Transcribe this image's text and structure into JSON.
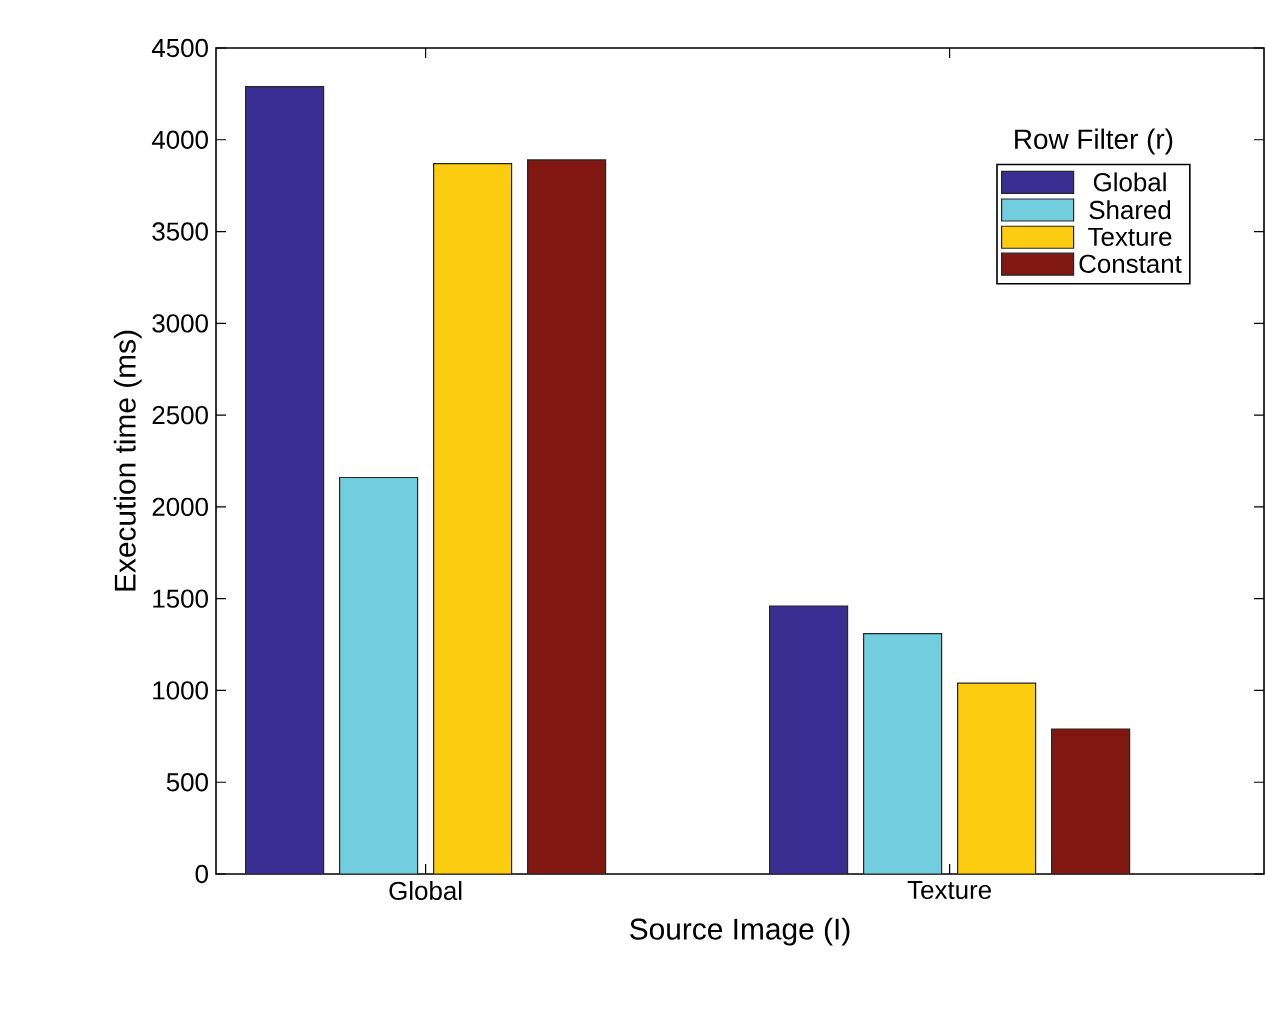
{
  "chart_data": {
    "type": "bar",
    "xlabel": "Source Image (I)",
    "ylabel": "Execution time (ms)",
    "legend_title": "Row Filter (r)",
    "categories": [
      "Global",
      "Texture"
    ],
    "series": [
      {
        "name": "Global",
        "color": "#3a2e92",
        "values": [
          4290,
          1460
        ]
      },
      {
        "name": "Shared",
        "color": "#72cddf",
        "values": [
          2160,
          1310
        ]
      },
      {
        "name": "Texture",
        "color": "#fbcc10",
        "values": [
          3870,
          1040
        ]
      },
      {
        "name": "Constant",
        "color": "#801811",
        "values": [
          3890,
          790
        ]
      }
    ],
    "ylim": [
      0,
      4500
    ],
    "yticks": [
      0,
      500,
      1000,
      1500,
      2000,
      2500,
      3000,
      3500,
      4000,
      4500
    ],
    "grid": false,
    "legend": "top right"
  }
}
